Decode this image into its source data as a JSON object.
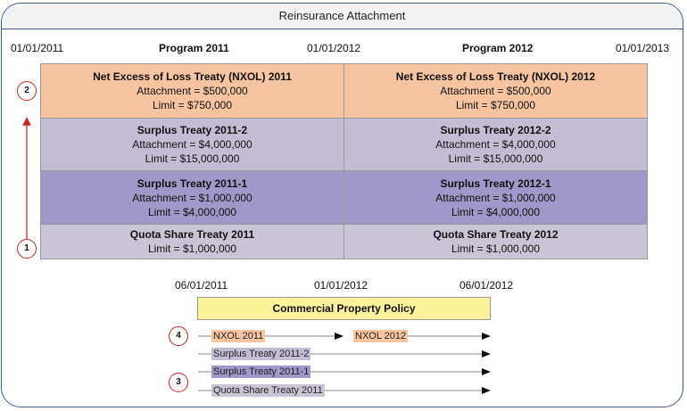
{
  "title": "Reinsurance Attachment",
  "top_dates": {
    "d1": "01/01/2011",
    "d2": "01/01/2012",
    "d3": "01/01/2013"
  },
  "programs": {
    "p1": "Program 2011",
    "p2": "Program 2012"
  },
  "layers": [
    {
      "left": {
        "name": "Net Excess of Loss Treaty (NXOL) 2011",
        "attachment": "Attachment = $500,000",
        "limit": "Limit = $750,000"
      },
      "right": {
        "name": "Net Excess of Loss Treaty (NXOL) 2012",
        "attachment": "Attachment = $500,000",
        "limit": "Limit = $750,000"
      }
    },
    {
      "left": {
        "name": "Surplus Treaty 2011-2",
        "attachment": "Attachment = $4,000,000",
        "limit": "Limit = $15,000,000"
      },
      "right": {
        "name": "Surplus Treaty 2012-2",
        "attachment": "Attachment = $4,000,000",
        "limit": "Limit = $15,000,000"
      }
    },
    {
      "left": {
        "name": "Surplus Treaty 2011-1",
        "attachment": "Attachment = $1,000,000",
        "limit": "Limit = $4,000,000"
      },
      "right": {
        "name": "Surplus Treaty 2012-1",
        "attachment": "Attachment = $1,000,000",
        "limit": "Limit = $4,000,000"
      }
    },
    {
      "left": {
        "name": "Quota Share Treaty 2011",
        "limit": "Limit = $1,000,000"
      },
      "right": {
        "name": "Quota Share Treaty 2012",
        "limit": "Limit = $1,000,000"
      }
    }
  ],
  "markers": {
    "m1": "1",
    "m2": "2",
    "m3": "3",
    "m4": "4"
  },
  "policy": {
    "dates": {
      "d1": "06/01/2011",
      "d2": "01/01/2012",
      "d3": "06/01/2012"
    },
    "title": "Commercial Property Policy",
    "bars": {
      "nxol_2011": "NXOL 2011",
      "nxol_2012": "NXOL 2012",
      "surplus_2": "Surplus Treaty 2011-2",
      "surplus_1": "Surplus Treaty 2011-1",
      "quota": "Quota Share Treaty 2011"
    }
  },
  "colors": {
    "nxol": "#f6c4a0",
    "surplus_2": "#c3bcd5",
    "surplus_1": "#9f98c9",
    "quota": "#cac5d6",
    "policy": "#fbf29a",
    "marker": "#d02020"
  }
}
